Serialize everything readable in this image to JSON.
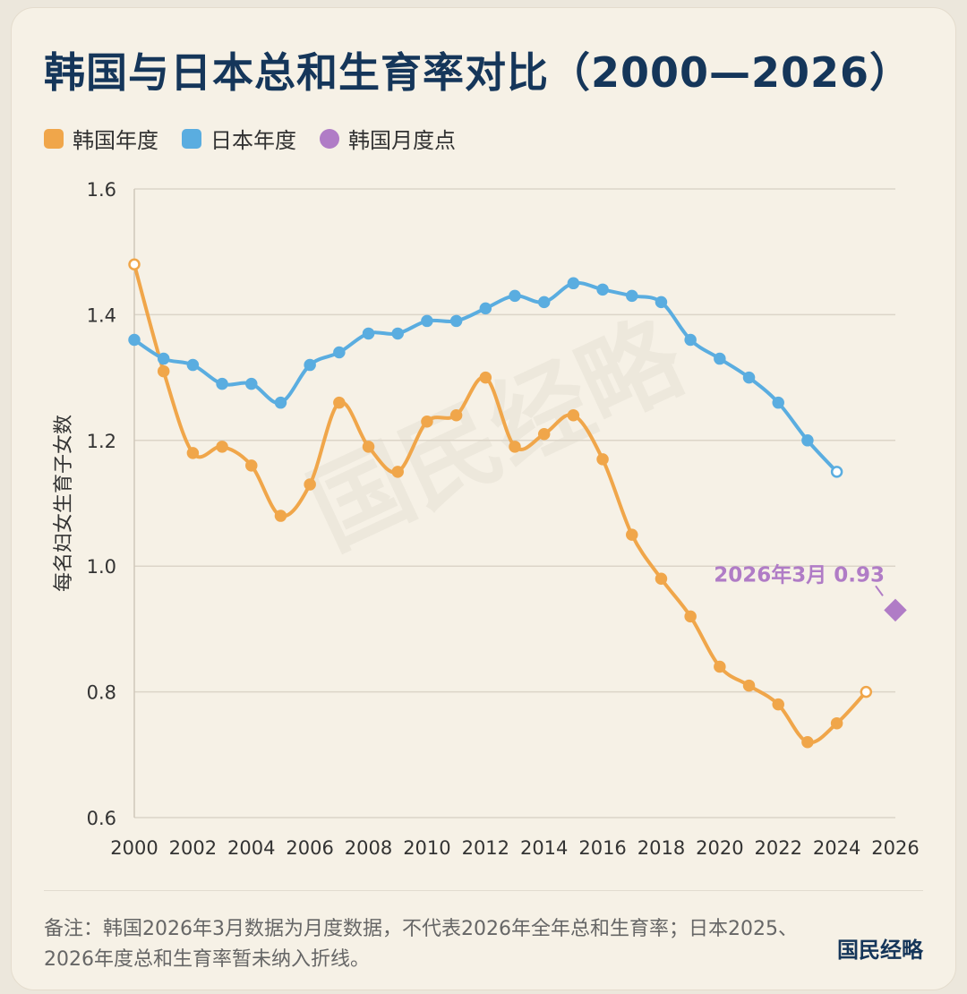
{
  "title": "韩国与日本总和生育率对比（2000—2026）",
  "legend": [
    {
      "label": "韩国年度",
      "color": "#f0a64a",
      "shape": "square"
    },
    {
      "label": "日本年度",
      "color": "#5aade0",
      "shape": "square"
    },
    {
      "label": "韩国月度点",
      "color": "#b07cc6",
      "shape": "circle"
    }
  ],
  "watermark": "国民经略",
  "note": "备注：韩国2026年3月数据为月度数据，不代表2026年全年总和生育率；日本2025、2026年度总和生育率暂未纳入折线。",
  "brand": "国民经略",
  "chart_data": {
    "type": "line",
    "ylabel": "每名妇女生育子女数",
    "xlim": [
      2000,
      2026
    ],
    "ylim": [
      0.6,
      1.6
    ],
    "yticks": [
      0.6,
      0.8,
      1.0,
      1.2,
      1.4,
      1.6
    ],
    "xticks": [
      2000,
      2002,
      2004,
      2006,
      2008,
      2010,
      2012,
      2014,
      2016,
      2018,
      2020,
      2022,
      2024,
      2026
    ],
    "grid": true,
    "legend_position": "top-left",
    "series": [
      {
        "name": "韩国年度",
        "color": "#f0a64a",
        "x": [
          2000,
          2001,
          2002,
          2003,
          2004,
          2005,
          2006,
          2007,
          2008,
          2009,
          2010,
          2011,
          2012,
          2013,
          2014,
          2015,
          2016,
          2017,
          2018,
          2019,
          2020,
          2021,
          2022,
          2023,
          2024,
          2025
        ],
        "y": [
          1.48,
          1.31,
          1.18,
          1.19,
          1.16,
          1.08,
          1.13,
          1.26,
          1.19,
          1.15,
          1.23,
          1.24,
          1.3,
          1.19,
          1.21,
          1.24,
          1.17,
          1.05,
          0.98,
          0.92,
          0.84,
          0.81,
          0.78,
          0.72,
          0.75,
          0.8
        ]
      },
      {
        "name": "日本年度",
        "color": "#5aade0",
        "x": [
          2000,
          2001,
          2002,
          2003,
          2004,
          2005,
          2006,
          2007,
          2008,
          2009,
          2010,
          2011,
          2012,
          2013,
          2014,
          2015,
          2016,
          2017,
          2018,
          2019,
          2020,
          2021,
          2022,
          2023,
          2024
        ],
        "y": [
          1.36,
          1.33,
          1.32,
          1.29,
          1.29,
          1.26,
          1.32,
          1.34,
          1.37,
          1.37,
          1.39,
          1.39,
          1.41,
          1.43,
          1.42,
          1.45,
          1.44,
          1.43,
          1.42,
          1.36,
          1.33,
          1.3,
          1.26,
          1.2,
          1.15
        ]
      },
      {
        "name": "韩国月度点",
        "color": "#b07cc6",
        "x": [
          2026
        ],
        "y": [
          0.93
        ]
      }
    ],
    "annotation": {
      "text": "2026年3月 0.93",
      "x": 2026,
      "y": 0.93
    }
  }
}
